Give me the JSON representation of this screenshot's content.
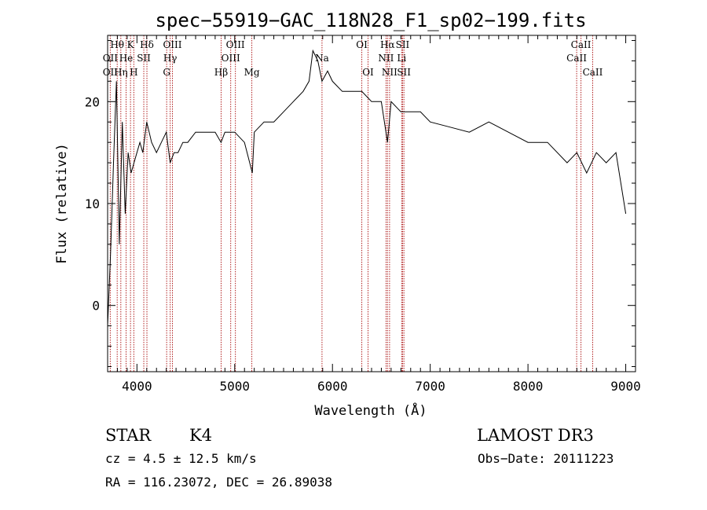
{
  "chart_data": {
    "type": "line",
    "title": "spec−55919−GAC_118N28_F1_sp02−199.fits",
    "xlabel": "Wavelength (Å)",
    "ylabel": "Flux (relative)",
    "xlim": [
      3700,
      9100
    ],
    "ylim": [
      -6.5,
      26.5
    ],
    "x_ticks": [
      4000,
      5000,
      6000,
      7000,
      8000,
      9000
    ],
    "y_ticks": [
      0,
      10,
      20
    ],
    "grid": false,
    "series": [
      {
        "x": [
          3700,
          3730,
          3760,
          3790,
          3820,
          3850,
          3880,
          3910,
          3940,
          3970,
          4000,
          4030,
          4060,
          4100,
          4150,
          4200,
          4250,
          4300,
          4340,
          4380,
          4420,
          4470,
          4520,
          4600,
          4700,
          4800,
          4860,
          4900,
          5000,
          5100,
          5180,
          5200,
          5300,
          5400,
          5500,
          5600,
          5700,
          5760,
          5800,
          5850,
          5893,
          5950,
          6000,
          6100,
          6200,
          6300,
          6400,
          6500,
          6563,
          6600,
          6700,
          6800,
          6900,
          7000,
          7200,
          7400,
          7600,
          7800,
          8000,
          8200,
          8400,
          8500,
          8600,
          8700,
          8800,
          8900,
          9000
        ],
        "y": [
          -2,
          5,
          14,
          22,
          6,
          18,
          9,
          15,
          13,
          14,
          15,
          16,
          15,
          18,
          16,
          15,
          16,
          17,
          14,
          15,
          15,
          16,
          16,
          17,
          17,
          17,
          16,
          17,
          17,
          16,
          13,
          17,
          18,
          18,
          19,
          20,
          21,
          22,
          25,
          24,
          22,
          23,
          22,
          21,
          21,
          21,
          20,
          20,
          16,
          20,
          19,
          19,
          19,
          18,
          17.5,
          17,
          18,
          17,
          16,
          16,
          14,
          15,
          13,
          15,
          14,
          15,
          9
        ]
      }
    ],
    "reference_lines": [
      {
        "label": "Hθ",
        "x": 3798,
        "row": 1
      },
      {
        "label": "OII",
        "x": 3727,
        "row": 2
      },
      {
        "label": "OII",
        "x": 3727,
        "row": 3
      },
      {
        "label": "Hη",
        "x": 3835,
        "row": 3
      },
      {
        "label": "K",
        "x": 3934,
        "row": 1
      },
      {
        "label": "He",
        "x": 3889,
        "row": 2
      },
      {
        "label": "H",
        "x": 3968,
        "row": 3
      },
      {
        "label": "Hδ",
        "x": 4102,
        "row": 1
      },
      {
        "label": "SII",
        "x": 4070,
        "row": 2
      },
      {
        "label": "OIII",
        "x": 4363,
        "row": 1
      },
      {
        "label": "Hγ",
        "x": 4340,
        "row": 2
      },
      {
        "label": "G",
        "x": 4304,
        "row": 3
      },
      {
        "label": "Hβ",
        "x": 4861,
        "row": 3
      },
      {
        "label": "OIII",
        "x": 5007,
        "row": 1
      },
      {
        "label": "OIII",
        "x": 4959,
        "row": 2
      },
      {
        "label": "Mg",
        "x": 5175,
        "row": 3
      },
      {
        "label": "Na",
        "x": 5893,
        "row": 2
      },
      {
        "label": "OI",
        "x": 6300,
        "row": 1
      },
      {
        "label": "OI",
        "x": 6364,
        "row": 3
      },
      {
        "label": "Hα",
        "x": 6563,
        "row": 1
      },
      {
        "label": "NII",
        "x": 6548,
        "row": 2
      },
      {
        "label": "NII",
        "x": 6584,
        "row": 3
      },
      {
        "label": "SII",
        "x": 6717,
        "row": 1
      },
      {
        "label": "Li",
        "x": 6708,
        "row": 2
      },
      {
        "label": "SII",
        "x": 6731,
        "row": 3
      },
      {
        "label": "CaII",
        "x": 8542,
        "row": 1
      },
      {
        "label": "CaII",
        "x": 8498,
        "row": 2
      },
      {
        "label": "CaII",
        "x": 8662,
        "row": 3
      }
    ]
  },
  "info": {
    "class_label": "STAR",
    "subclass": "K4",
    "survey": "LAMOST DR3",
    "cz": "cz = 4.5 ± 12.5 km/s",
    "obs_date": "Obs−Date: 20111223",
    "radec": "RA = 116.23072, DEC =  26.89038"
  },
  "colors": {
    "spectrum": "#000000",
    "line_markers": "#b22222",
    "background": "#ffffff"
  }
}
